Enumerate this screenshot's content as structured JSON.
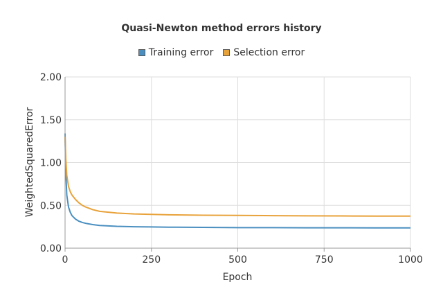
{
  "chart_data": {
    "type": "line",
    "title": "Quasi-Newton method errors history",
    "xlabel": "Epoch",
    "ylabel": "WeightedSquaredError",
    "xlim": [
      0,
      1000
    ],
    "ylim": [
      0,
      2
    ],
    "x_ticks": [
      "0",
      "250",
      "500",
      "750",
      "1000"
    ],
    "y_ticks": [
      "0.00",
      "0.50",
      "1.00",
      "1.50",
      "2.00"
    ],
    "grid": true,
    "legend_position": "top",
    "series": [
      {
        "name": "Training error",
        "color": "#4a8fc0",
        "x": [
          0,
          2,
          5,
          10,
          15,
          20,
          30,
          40,
          50,
          60,
          80,
          100,
          150,
          200,
          250,
          300,
          400,
          500,
          600,
          700,
          800,
          900,
          1000
        ],
        "y": [
          1.34,
          0.9,
          0.62,
          0.48,
          0.42,
          0.38,
          0.34,
          0.315,
          0.3,
          0.29,
          0.275,
          0.265,
          0.255,
          0.25,
          0.248,
          0.245,
          0.243,
          0.24,
          0.24,
          0.238,
          0.238,
          0.237,
          0.237
        ]
      },
      {
        "name": "Selection error",
        "color": "#e8a23a",
        "x": [
          0,
          2,
          5,
          10,
          15,
          20,
          30,
          40,
          50,
          60,
          80,
          100,
          150,
          200,
          250,
          300,
          400,
          500,
          600,
          700,
          800,
          900,
          1000
        ],
        "y": [
          1.3,
          1.05,
          0.85,
          0.72,
          0.66,
          0.62,
          0.57,
          0.53,
          0.5,
          0.48,
          0.45,
          0.43,
          0.41,
          0.4,
          0.395,
          0.39,
          0.385,
          0.383,
          0.38,
          0.378,
          0.376,
          0.375,
          0.375
        ]
      }
    ]
  }
}
